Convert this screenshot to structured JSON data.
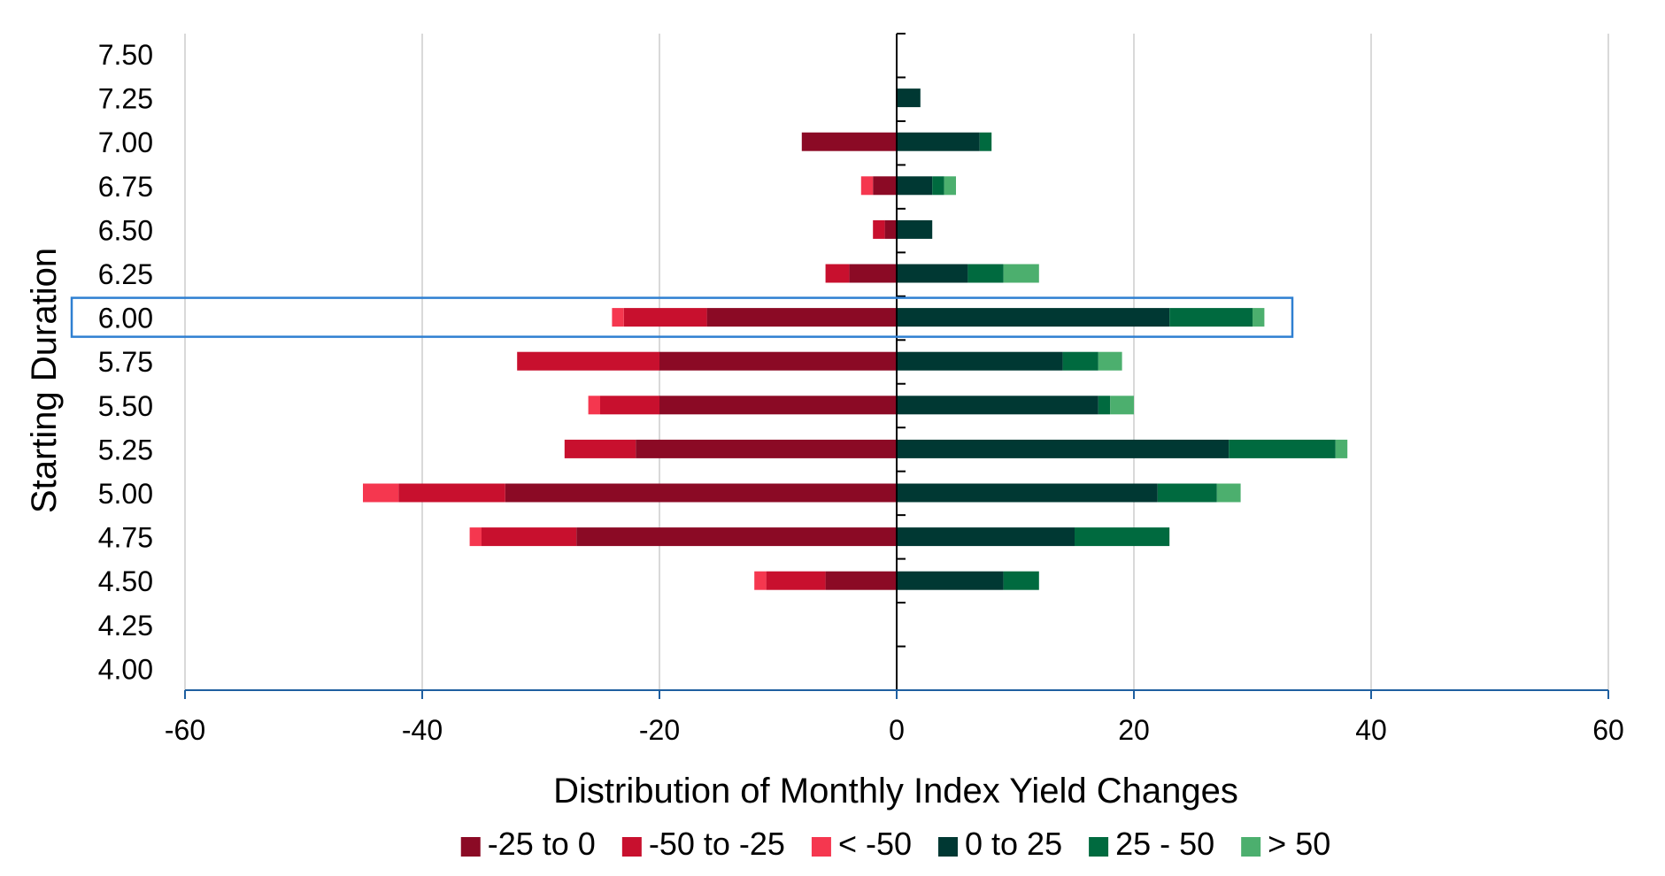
{
  "chart_data": {
    "type": "bar",
    "orientation": "horizontal",
    "stacked": "diverging",
    "xlabel": "Distribution of Monthly Index Yield Changes",
    "ylabel": "Starting Duration",
    "xlim": [
      -60,
      60
    ],
    "xticks": [
      "-60",
      "-40",
      "-20",
      "0",
      "20",
      "40",
      "60"
    ],
    "grid": "vertical",
    "legend_position": "bottom",
    "highlighted_category": "6.00",
    "categories": [
      "7.50",
      "7.25",
      "7.00",
      "6.75",
      "6.50",
      "6.25",
      "6.00",
      "5.75",
      "5.50",
      "5.25",
      "5.00",
      "4.75",
      "4.50",
      "4.25",
      "4.00"
    ],
    "series": [
      {
        "name": "-25 to 0",
        "color": "#8b0a25",
        "values": [
          0,
          0,
          -8,
          -2,
          -1,
          -4,
          -16,
          -20,
          -20,
          -22,
          -33,
          -27,
          -6,
          0,
          0
        ]
      },
      {
        "name": "-50 to -25",
        "color": "#c8102e",
        "values": [
          0,
          0,
          0,
          0,
          -1,
          -2,
          -7,
          -12,
          -5,
          -6,
          -9,
          -8,
          -5,
          0,
          0
        ]
      },
      {
        "name": "< -50",
        "color": "#f5374f",
        "values": [
          0,
          0,
          0,
          -1,
          0,
          0,
          -1,
          0,
          -1,
          0,
          -3,
          -1,
          -1,
          0,
          0
        ]
      },
      {
        "name": "0 to 25",
        "color": "#003833",
        "values": [
          0,
          2,
          7,
          3,
          3,
          6,
          23,
          14,
          17,
          28,
          22,
          15,
          9,
          0,
          0
        ]
      },
      {
        "name": "25 - 50",
        "color": "#006a3f",
        "values": [
          0,
          0,
          1,
          1,
          0,
          3,
          7,
          3,
          1,
          9,
          5,
          8,
          3,
          0,
          0
        ]
      },
      {
        "name": "> 50",
        "color": "#4caf6e",
        "values": [
          0,
          0,
          0,
          1,
          0,
          3,
          1,
          2,
          2,
          1,
          2,
          0,
          0,
          0,
          0
        ]
      }
    ]
  }
}
